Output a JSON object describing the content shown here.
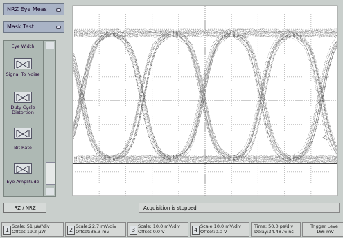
{
  "menus": {
    "measurement": "NRZ Eye Meas",
    "test": "Mask Test"
  },
  "measurements": [
    "Eye Width",
    "Signal To Noise",
    "Duty Cycle Distortion",
    "Bit Rate",
    "Eye Amplitude"
  ],
  "mode_toggle": "RZ / NRZ",
  "status": "Acquisition is stopped",
  "channels": [
    {
      "number": "1",
      "scale": "Scale: 51 µW/div",
      "offset": "Offset:19.2 µW"
    },
    {
      "number": "2",
      "scale": "Scale:22.7 mV/div",
      "offset": "Offset:36.3 mV"
    },
    {
      "number": "3",
      "scale": "Scale: 10.0 mV/div",
      "offset": "Offset:0.0 V"
    },
    {
      "number": "4",
      "scale": "Scale:10.0 mV/div",
      "offset": "Offset:0.0 V"
    }
  ],
  "timebase": {
    "scale": "Time: 50.0 ps/div",
    "delay": "Delay:34.4876 ns"
  },
  "trigger": {
    "label": "Trigger Leve",
    "level": "-166 mV"
  }
}
